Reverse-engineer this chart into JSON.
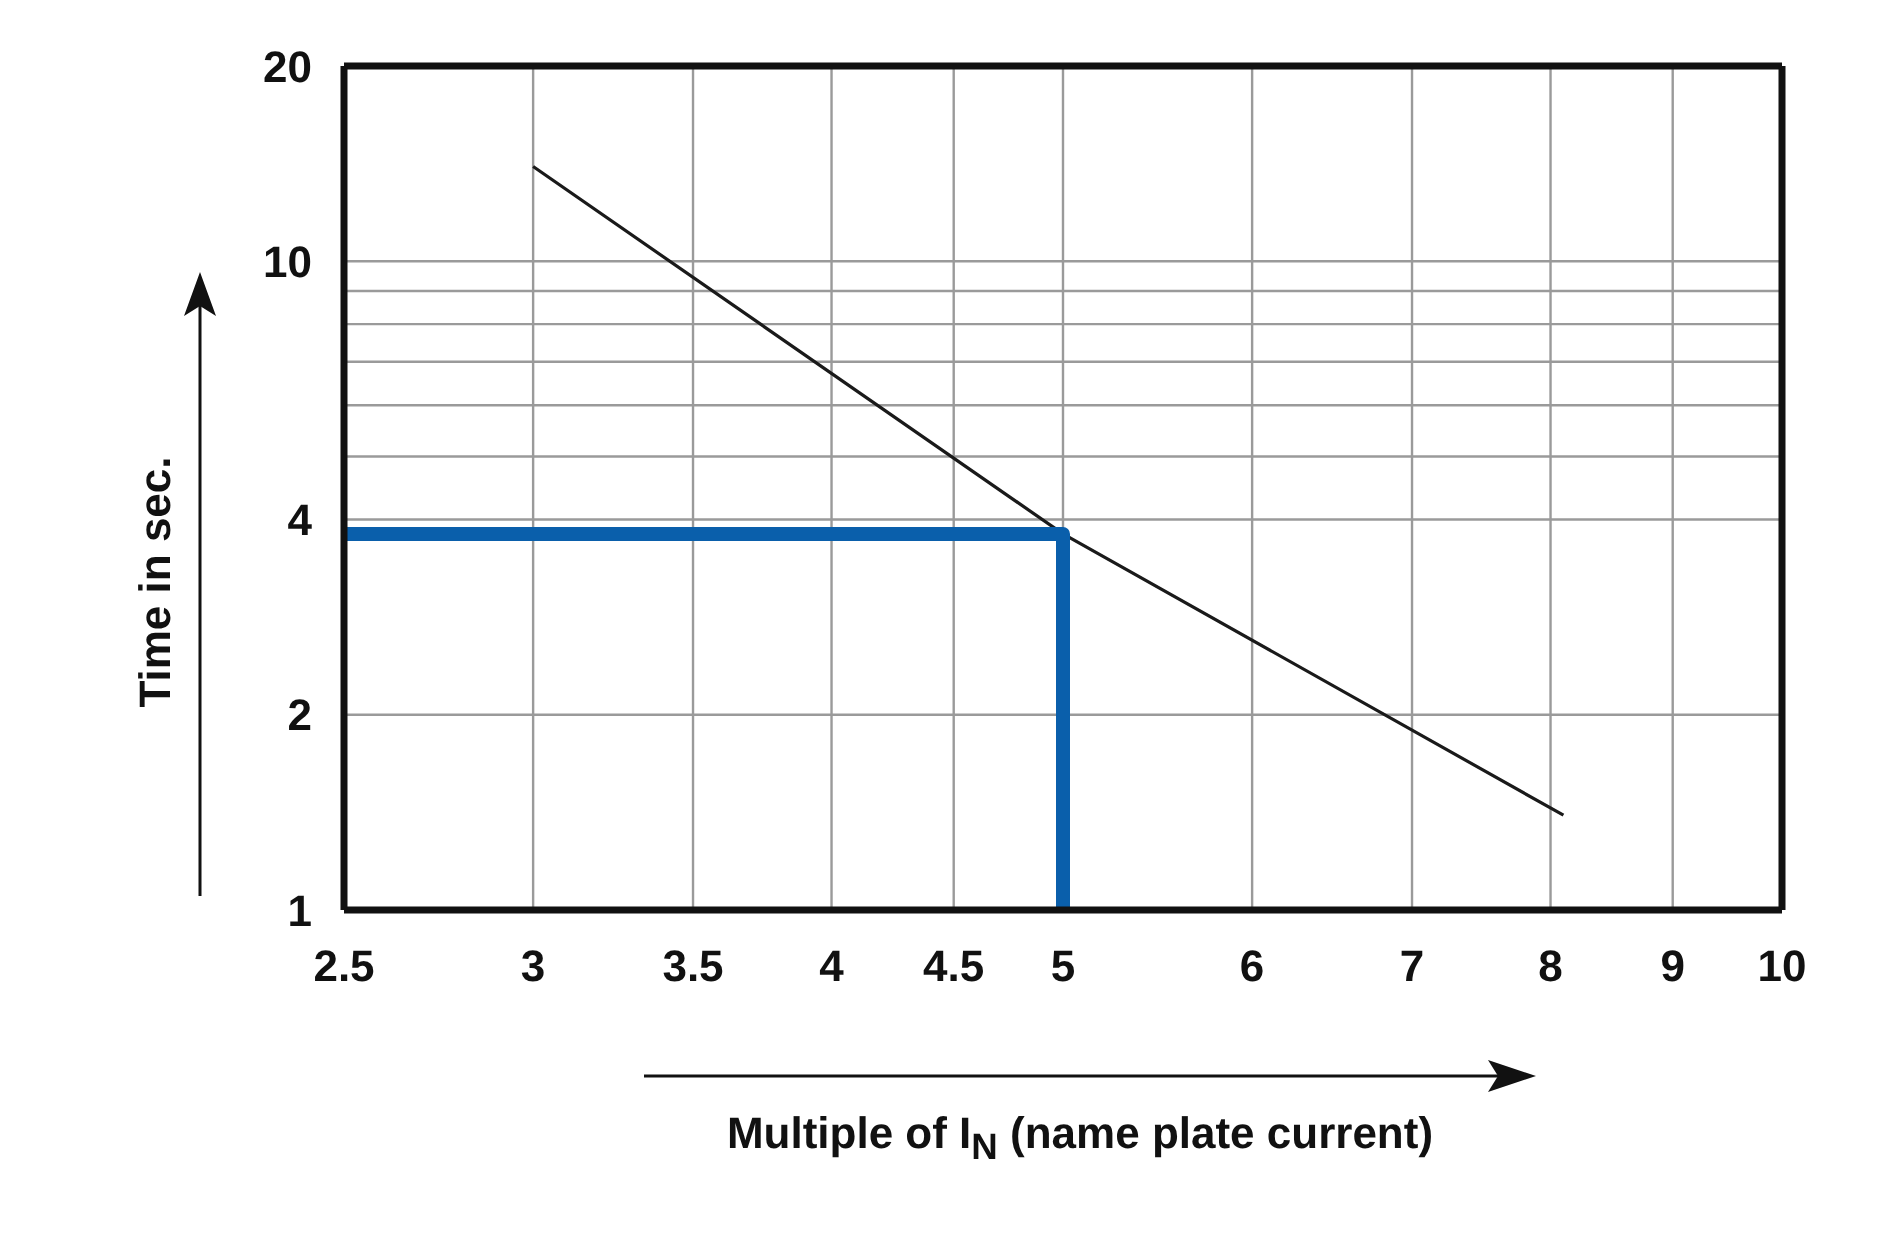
{
  "chart_data": {
    "type": "line",
    "xlabel": "Multiple of I$_{N}$ (name plate current)",
    "ylabel": "Time in sec.",
    "log": "xy",
    "grid": true,
    "marker": "none",
    "xlim": [
      2.5,
      10
    ],
    "xticks": [
      2.5,
      3,
      3.5,
      4,
      4.5,
      5,
      6,
      7,
      8,
      9,
      10
    ],
    "ylim": [
      1,
      20
    ],
    "yticks": [
      1,
      2,
      4,
      {
        "value": 5,
        "label": null
      },
      {
        "value": 6,
        "label": null
      },
      {
        "value": 7,
        "label": null
      },
      {
        "value": 8,
        "label": null
      },
      {
        "value": 9,
        "label": null
      },
      10,
      20
    ],
    "series": [
      {
        "color": "#1a1a1a",
        "x": [
          3,
          5,
          8.1
        ],
        "values": [
          14,
          3.8,
          1.4
        ]
      },
      {
        "color": "#0a5fab",
        "x": [
          2.5,
          5,
          5
        ],
        "values": [
          3.8,
          3.8,
          1
        ]
      }
    ]
  }
}
